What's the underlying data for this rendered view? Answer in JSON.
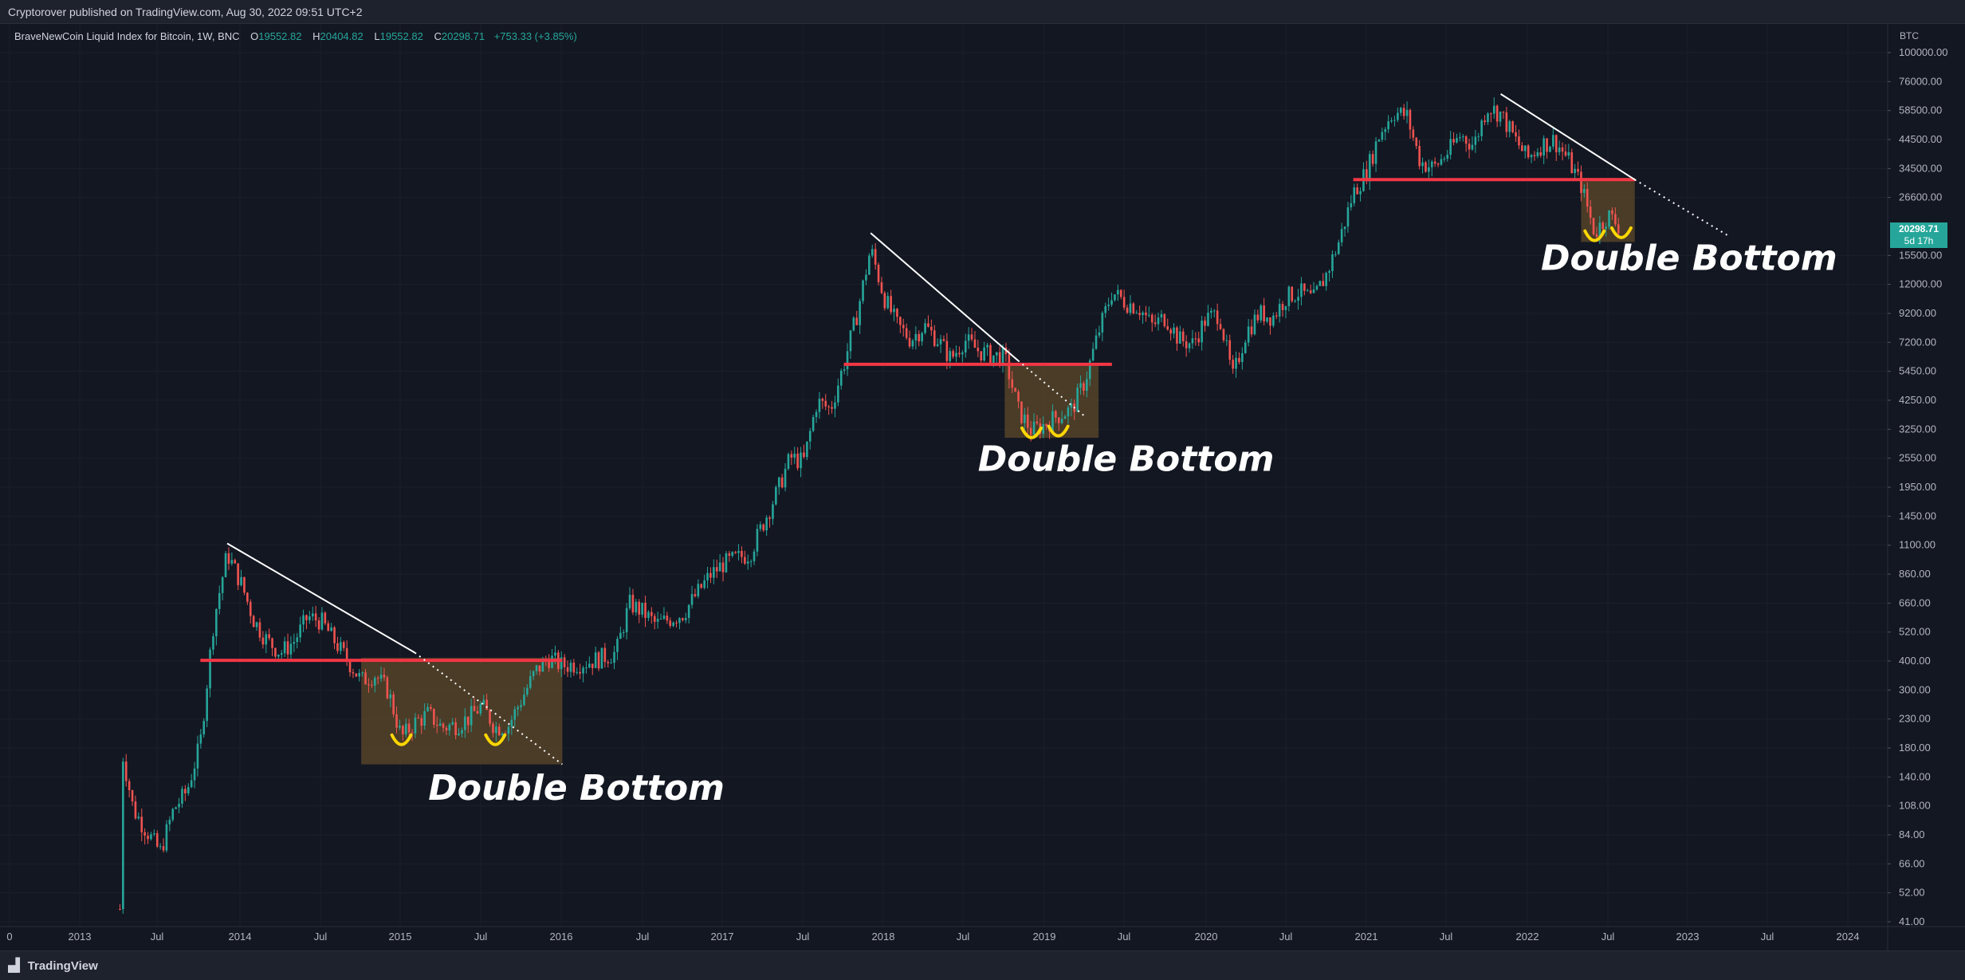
{
  "header": {
    "published_text": "Cryptorover published on TradingView.com, Aug 30, 2022 09:51 UTC+2"
  },
  "legend": {
    "symbol": "BraveNewCoin Liquid Index for Bitcoin, 1W, BNC",
    "o_label": "O",
    "o_value": "19552.82",
    "h_label": "H",
    "h_value": "20404.82",
    "l_label": "L",
    "l_value": "19552.82",
    "c_label": "C",
    "c_value": "20298.71",
    "change": "+753.33 (+3.85%)"
  },
  "price_badge": {
    "price": "20298.71",
    "countdown": "5d 17h"
  },
  "footer": {
    "brand": "TradingView",
    "logo_icon": "tradingview-logo-icon"
  },
  "colors": {
    "background": "#131722",
    "up": "#26a69a",
    "down": "#ef5350",
    "resistance": "#f23645",
    "box": "#5d4a2a",
    "smile": "#ffd600"
  },
  "chart_data": {
    "type": "candlestick",
    "title": "",
    "currency_label": "BTC",
    "y_scale": "log",
    "ylim": [
      41,
      100000
    ],
    "y_ticks": [
      "100000.00",
      "76000.00",
      "58500.00",
      "44500.00",
      "34500.00",
      "26600.00",
      "20298.71",
      "15500.00",
      "12000.00",
      "9200.00",
      "7200.00",
      "5450.00",
      "4250.00",
      "3250.00",
      "2550.00",
      "1950.00",
      "1450.00",
      "1100.00",
      "860.00",
      "660.00",
      "520.00",
      "400.00",
      "300.00",
      "230.00",
      "180.00",
      "140.00",
      "108.00",
      "84.00",
      "66.00",
      "52.00",
      "41.00"
    ],
    "x_ticks": [
      "0",
      "2013",
      "Jul",
      "2014",
      "Jul",
      "2015",
      "Jul",
      "2016",
      "Jul",
      "2017",
      "Jul",
      "2018",
      "Jul",
      "2019",
      "Jul",
      "2020",
      "Jul",
      "2021",
      "Jul",
      "2022",
      "Jul",
      "2023",
      "Jul",
      "2024"
    ],
    "price_path": [
      [
        "2013-04",
        45
      ],
      [
        "2013-04",
        180
      ],
      [
        "2013-05",
        110
      ],
      [
        "2013-07",
        75
      ],
      [
        "2013-08",
        110
      ],
      [
        "2013-09",
        130
      ],
      [
        "2013-10",
        200
      ],
      [
        "2013-11",
        600
      ],
      [
        "2013-12",
        1100
      ],
      [
        "2014-01",
        850
      ],
      [
        "2014-02",
        600
      ],
      [
        "2014-03",
        500
      ],
      [
        "2014-04",
        450
      ],
      [
        "2014-05",
        500
      ],
      [
        "2014-06",
        620
      ],
      [
        "2014-07",
        600
      ],
      [
        "2014-08",
        500
      ],
      [
        "2014-09",
        420
      ],
      [
        "2014-10",
        350
      ],
      [
        "2014-11",
        370
      ],
      [
        "2014-12",
        320
      ],
      [
        "2015-01",
        210
      ],
      [
        "2015-02",
        240
      ],
      [
        "2015-03",
        260
      ],
      [
        "2015-04",
        230
      ],
      [
        "2015-05",
        235
      ],
      [
        "2015-06",
        250
      ],
      [
        "2015-07",
        280
      ],
      [
        "2015-08",
        230
      ],
      [
        "2015-09",
        235
      ],
      [
        "2015-10",
        300
      ],
      [
        "2015-11",
        380
      ],
      [
        "2015-12",
        430
      ],
      [
        "2016-01",
        400
      ],
      [
        "2016-03",
        415
      ],
      [
        "2016-05",
        450
      ],
      [
        "2016-06",
        700
      ],
      [
        "2016-07",
        650
      ],
      [
        "2016-08",
        580
      ],
      [
        "2016-10",
        640
      ],
      [
        "2016-12",
        900
      ],
      [
        "2017-01",
        1000
      ],
      [
        "2017-03",
        1100
      ],
      [
        "2017-05",
        1900
      ],
      [
        "2017-06",
        2600
      ],
      [
        "2017-07",
        2500
      ],
      [
        "2017-08",
        4300
      ],
      [
        "2017-09",
        4000
      ],
      [
        "2017-10",
        6000
      ],
      [
        "2017-11",
        9500
      ],
      [
        "2017-12",
        17000
      ],
      [
        "2018-01",
        11000
      ],
      [
        "2018-02",
        8500
      ],
      [
        "2018-03",
        7500
      ],
      [
        "2018-04",
        8500
      ],
      [
        "2018-05",
        7500
      ],
      [
        "2018-06",
        6300
      ],
      [
        "2018-07",
        7500
      ],
      [
        "2018-08",
        6800
      ],
      [
        "2018-09",
        6500
      ],
      [
        "2018-10",
        6400
      ],
      [
        "2018-11",
        4000
      ],
      [
        "2018-12",
        3300
      ],
      [
        "2019-01",
        3500
      ],
      [
        "2019-02",
        3800
      ],
      [
        "2019-03",
        4000
      ],
      [
        "2019-04",
        5200
      ],
      [
        "2019-05",
        8000
      ],
      [
        "2019-06",
        11500
      ],
      [
        "2019-07",
        10500
      ],
      [
        "2019-08",
        10000
      ],
      [
        "2019-09",
        8500
      ],
      [
        "2019-10",
        9200
      ],
      [
        "2019-11",
        7500
      ],
      [
        "2019-12",
        7200
      ],
      [
        "2020-01",
        9000
      ],
      [
        "2020-02",
        9500
      ],
      [
        "2020-03",
        5300
      ],
      [
        "2020-04",
        8000
      ],
      [
        "2020-05",
        9500
      ],
      [
        "2020-06",
        9200
      ],
      [
        "2020-07",
        11000
      ],
      [
        "2020-08",
        11500
      ],
      [
        "2020-09",
        10700
      ],
      [
        "2020-10",
        13500
      ],
      [
        "2020-11",
        18500
      ],
      [
        "2020-12",
        28000
      ],
      [
        "2021-01",
        34000
      ],
      [
        "2021-02",
        48000
      ],
      [
        "2021-03",
        58000
      ],
      [
        "2021-04",
        56000
      ],
      [
        "2021-05",
        37000
      ],
      [
        "2021-06",
        35000
      ],
      [
        "2021-07",
        40000
      ],
      [
        "2021-08",
        47000
      ],
      [
        "2021-09",
        43000
      ],
      [
        "2021-10",
        61000
      ],
      [
        "2021-11",
        57000
      ],
      [
        "2021-12",
        46000
      ],
      [
        "2022-01",
        38000
      ],
      [
        "2022-02",
        43000
      ],
      [
        "2022-03",
        45000
      ],
      [
        "2022-04",
        38000
      ],
      [
        "2022-05",
        30000
      ],
      [
        "2022-06",
        19500
      ],
      [
        "2022-07",
        23000
      ],
      [
        "2022-08",
        20298.71
      ]
    ],
    "resistance_lines": [
      {
        "from": "2013-10",
        "to": "2016-01",
        "price": 420
      },
      {
        "from": "2017-10",
        "to": "2019-06",
        "price": 6000
      },
      {
        "from": "2020-12",
        "to": "2022-09",
        "price": 31500
      }
    ],
    "trendlines": [
      {
        "from": [
          "2013-12",
          1200
        ],
        "solid_to": [
          "2015-02",
          450
        ],
        "dotted_to": [
          "2016-01",
          165
        ]
      },
      {
        "from": [
          "2017-12",
          19500
        ],
        "solid_to": [
          "2018-11",
          6200
        ],
        "dotted_to": [
          "2019-04",
          3750
        ]
      },
      {
        "from": [
          "2021-11",
          68000
        ],
        "solid_to": [
          "2022-09",
          31500
        ],
        "dotted_to": [
          "2023-04",
          19000
        ]
      }
    ],
    "highlight_boxes": [
      {
        "from": "2014-10",
        "to": "2016-01",
        "top": 430,
        "bottom": 165
      },
      {
        "from": "2018-10",
        "to": "2019-05",
        "top": 6000,
        "bottom": 3100
      },
      {
        "from": "2022-05",
        "to": "2022-09",
        "top": 32000,
        "bottom": 18000
      }
    ],
    "smiles": [
      [
        "2015-01",
        200
      ],
      [
        "2015-08",
        200
      ],
      [
        "2018-12",
        3150
      ],
      [
        "2019-02",
        3200
      ],
      [
        "2022-06",
        18500
      ],
      [
        "2022-08",
        19000
      ]
    ],
    "annotations": [
      {
        "text": "Double Bottom",
        "at": [
          "2015-03",
          120
        ]
      },
      {
        "text": "Double Bottom",
        "at": [
          "2018-08",
          2300
        ]
      },
      {
        "text": "Double Bottom",
        "at": [
          "2022-02",
          14000
        ]
      }
    ]
  }
}
